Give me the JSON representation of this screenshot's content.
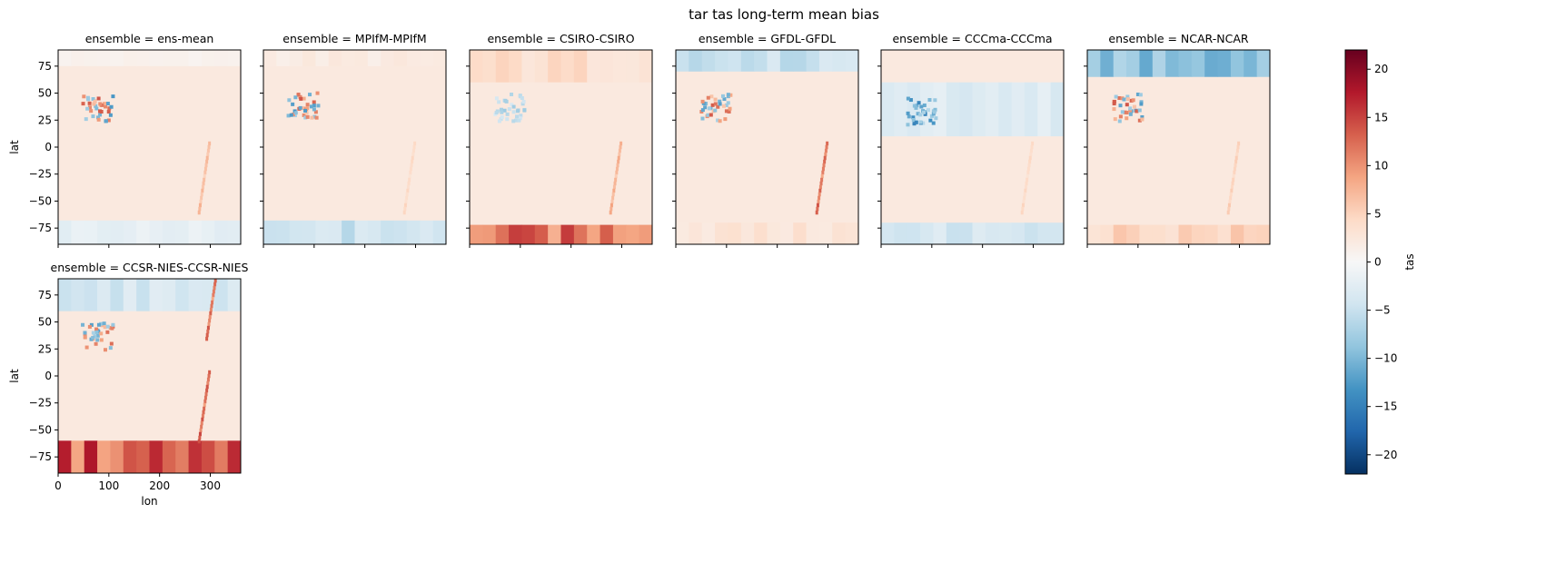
{
  "chart_data": {
    "type": "heatmap",
    "title": "tar tas long-term mean bias",
    "variable": "tas",
    "colorbar_label": "tas",
    "colormap": "RdBu_r",
    "colorbar_range": [
      -22,
      22
    ],
    "colorbar_ticks": [
      -20,
      -15,
      -10,
      -5,
      0,
      5,
      10,
      15,
      20
    ],
    "xlabel": "lon",
    "ylabel": "lat",
    "xlim": [
      0,
      360
    ],
    "ylim": [
      -90,
      90
    ],
    "x_ticks": [
      0,
      100,
      200,
      300
    ],
    "y_ticks": [
      -75,
      -50,
      -25,
      0,
      25,
      50,
      75
    ],
    "layout": "facet grid, 6 columns",
    "panels": [
      {
        "title": "ensemble = ens-mean",
        "bias_bands": [
          {
            "lat": [
              75,
              90
            ],
            "level": 1
          },
          {
            "lat": [
              -90,
              -68
            ],
            "level": -2
          }
        ],
        "features": [
          {
            "lon": 75,
            "lat": 38,
            "kind": "mixed"
          },
          {
            "lon": 285,
            "lat": -20,
            "kind": "warm",
            "level": 8
          }
        ]
      },
      {
        "title": "ensemble = MPIfM-MPIfM",
        "bias_bands": [
          {
            "lat": [
              75,
              90
            ],
            "level": 2
          },
          {
            "lat": [
              -90,
              -68
            ],
            "level": -5
          }
        ],
        "features": [
          {
            "lon": 75,
            "lat": 40,
            "kind": "mixed"
          },
          {
            "lon": 285,
            "lat": -20,
            "kind": "warm",
            "level": 5
          }
        ]
      },
      {
        "title": "ensemble = CSIRO-CSIRO",
        "bias_bands": [
          {
            "lat": [
              60,
              90
            ],
            "level": 4
          },
          {
            "lat": [
              -90,
              -72
            ],
            "level": 12
          }
        ],
        "features": [
          {
            "lon": 75,
            "lat": 38,
            "kind": "cool",
            "level": -8
          },
          {
            "lon": 285,
            "lat": -20,
            "kind": "warm",
            "level": 9
          }
        ]
      },
      {
        "title": "ensemble = GFDL-GFDL",
        "bias_bands": [
          {
            "lat": [
              70,
              90
            ],
            "level": -5
          },
          {
            "lat": [
              -90,
              -70
            ],
            "level": 3
          }
        ],
        "features": [
          {
            "lon": 75,
            "lat": 38,
            "kind": "mixed"
          },
          {
            "lon": 285,
            "lat": -20,
            "kind": "warm",
            "level": 14
          }
        ]
      },
      {
        "title": "ensemble = CCCma-CCCma",
        "bias_bands": [
          {
            "lat": [
              10,
              60
            ],
            "level": -3
          },
          {
            "lat": [
              -90,
              -70
            ],
            "level": -4
          }
        ],
        "features": [
          {
            "lon": 75,
            "lat": 35,
            "kind": "cool",
            "level": -15
          },
          {
            "lon": 285,
            "lat": -20,
            "kind": "warm",
            "level": 5
          }
        ]
      },
      {
        "title": "ensemble = NCAR-NCAR",
        "bias_bands": [
          {
            "lat": [
              65,
              90
            ],
            "level": -9
          },
          {
            "lat": [
              -90,
              -72
            ],
            "level": 5
          }
        ],
        "features": [
          {
            "lon": 75,
            "lat": 38,
            "kind": "mixed"
          },
          {
            "lon": 285,
            "lat": -20,
            "kind": "warm",
            "level": 6
          }
        ]
      },
      {
        "title": "ensemble = CCSR-NIES-CCSR-NIES",
        "bias_bands": [
          {
            "lat": [
              60,
              90
            ],
            "level": -4
          },
          {
            "lat": [
              -90,
              -60
            ],
            "level": 14
          }
        ],
        "features": [
          {
            "lon": 75,
            "lat": 38,
            "kind": "mixed"
          },
          {
            "lon": 285,
            "lat": -20,
            "kind": "warm",
            "level": 15
          },
          {
            "lon": 300,
            "lat": 75,
            "kind": "warm",
            "level": 14
          }
        ]
      }
    ]
  }
}
